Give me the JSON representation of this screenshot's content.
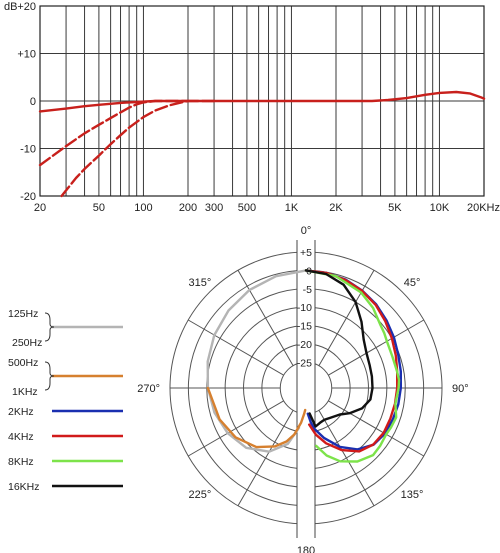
{
  "chart_data": [
    {
      "type": "line",
      "title": "",
      "x_scale": "log",
      "x_ticks": [
        {
          "value": 20,
          "label": "20"
        },
        {
          "value": 50,
          "label": "50"
        },
        {
          "value": 100,
          "label": "100"
        },
        {
          "value": 200,
          "label": "200"
        },
        {
          "value": 300,
          "label": "300"
        },
        {
          "value": 500,
          "label": "500"
        },
        {
          "value": 1000,
          "label": "1K"
        },
        {
          "value": 2000,
          "label": "2K"
        },
        {
          "value": 5000,
          "label": "5K"
        },
        {
          "value": 10000,
          "label": "10K"
        },
        {
          "value": 20000,
          "label": "20KHz"
        }
      ],
      "xlim": [
        20,
        20000
      ],
      "ylim": [
        -20,
        20
      ],
      "y_unit": "dB",
      "y_ticks": [
        {
          "value": 20,
          "label": "+20"
        },
        {
          "value": 10,
          "label": "+10"
        },
        {
          "value": 0,
          "label": "0"
        },
        {
          "value": -10,
          "label": "-10"
        },
        {
          "value": -20,
          "label": "-20"
        }
      ],
      "grid": true,
      "line_color": "#c8201c",
      "series": [
        {
          "style": "solid",
          "points": [
            [
              20,
              -2.2
            ],
            [
              30,
              -1.6
            ],
            [
              40,
              -1.1
            ],
            [
              50,
              -0.8
            ],
            [
              70,
              -0.4
            ],
            [
              90,
              -0.2
            ],
            [
              120,
              0
            ],
            [
              200,
              0
            ],
            [
              1000,
              0
            ],
            [
              3500,
              0
            ],
            [
              4500,
              0.2
            ],
            [
              6000,
              0.6
            ],
            [
              8000,
              1.3
            ],
            [
              10000,
              1.7
            ],
            [
              13000,
              1.9
            ],
            [
              16000,
              1.6
            ],
            [
              19000,
              0.8
            ],
            [
              20000,
              0.5
            ]
          ]
        },
        {
          "style": "dashed",
          "points": [
            [
              20,
              -13.5
            ],
            [
              30,
              -9.5
            ],
            [
              40,
              -6.8
            ],
            [
              50,
              -5
            ],
            [
              60,
              -3.6
            ],
            [
              70,
              -2.4
            ],
            [
              80,
              -1.4
            ],
            [
              90,
              -0.7
            ],
            [
              100,
              -0.3
            ],
            [
              120,
              0
            ],
            [
              200,
              0
            ]
          ]
        },
        {
          "style": "dashed",
          "points": [
            [
              28,
              -20
            ],
            [
              35,
              -16.2
            ],
            [
              40,
              -14.3
            ],
            [
              50,
              -11.5
            ],
            [
              60,
              -9.1
            ],
            [
              70,
              -7.2
            ],
            [
              80,
              -5.6
            ],
            [
              100,
              -3.4
            ],
            [
              120,
              -2
            ],
            [
              150,
              -0.9
            ],
            [
              180,
              -0.3
            ],
            [
              200,
              0
            ],
            [
              300,
              0
            ]
          ]
        }
      ]
    },
    {
      "type": "polar",
      "angle_labels": [
        {
          "angle": 0,
          "label": "0°"
        },
        {
          "angle": 45,
          "label": "45°"
        },
        {
          "angle": 90,
          "label": "90°"
        },
        {
          "angle": 135,
          "label": "135°"
        },
        {
          "angle": 180,
          "label": "180"
        },
        {
          "angle": 225,
          "label": "225°"
        },
        {
          "angle": 270,
          "label": "270°"
        },
        {
          "angle": 315,
          "label": "315°"
        }
      ],
      "radial_ticks": [
        {
          "value": 5,
          "label": "+5"
        },
        {
          "value": 0,
          "label": "0"
        },
        {
          "value": -5,
          "label": "-5"
        },
        {
          "value": -10,
          "label": "-10"
        },
        {
          "value": -15,
          "label": "-15"
        },
        {
          "value": -20,
          "label": "-20"
        },
        {
          "value": -25,
          "label": "-25"
        }
      ],
      "rlim": [
        -32,
        5
      ],
      "grid": true,
      "legend": [
        {
          "labels": [
            "125Hz",
            "250Hz"
          ],
          "color": "#b4b4b4"
        },
        {
          "labels": [
            "500Hz",
            "1KHz"
          ],
          "color": "#d6802f"
        },
        {
          "labels": [
            "2KHz"
          ],
          "color": "#1a2fb0"
        },
        {
          "labels": [
            "4KHz"
          ],
          "color": "#d11a1a"
        },
        {
          "labels": [
            "8KHz"
          ],
          "color": "#7de34a"
        },
        {
          "labels": [
            "16KHz"
          ],
          "color": "#111111"
        }
      ],
      "series": [
        {
          "legend_index": 0,
          "side": "left",
          "points": [
            [
              0,
              0
            ],
            [
              15,
              -0.5
            ],
            [
              30,
              -1.2
            ],
            [
              45,
              -2.2
            ],
            [
              60,
              -3.2
            ],
            [
              75,
              -4.3
            ],
            [
              90,
              -5.3
            ],
            [
              105,
              -6.2
            ],
            [
              120,
              -7.4
            ],
            [
              135,
              -9
            ],
            [
              150,
              -12
            ],
            [
              162,
              -16
            ],
            [
              170,
              -21
            ]
          ]
        },
        {
          "legend_index": 1,
          "side": "left",
          "points": [
            [
              90,
              -5.3
            ],
            [
              110,
              -7
            ],
            [
              125,
              -8.6
            ],
            [
              140,
              -11
            ],
            [
              152,
              -14
            ],
            [
              160,
              -16.5
            ],
            [
              166,
              -19
            ],
            [
              172,
              -22.5
            ],
            [
              176,
              -25
            ],
            [
              178,
              -26
            ]
          ]
        },
        {
          "legend_index": 2,
          "side": "right",
          "points": [
            [
              0,
              0
            ],
            [
              10,
              -0.2
            ],
            [
              20,
              -0.6
            ],
            [
              30,
              -1.4
            ],
            [
              40,
              -2.3
            ],
            [
              50,
              -3.4
            ],
            [
              60,
              -4.4
            ],
            [
              70,
              -5.3
            ],
            [
              80,
              -5.8
            ],
            [
              90,
              -6.2
            ],
            [
              100,
              -6.5
            ],
            [
              110,
              -6.9
            ],
            [
              120,
              -7.2
            ],
            [
              130,
              -8
            ],
            [
              140,
              -10.2
            ],
            [
              150,
              -13.5
            ],
            [
              160,
              -17.5
            ],
            [
              168,
              -20.5
            ],
            [
              172,
              -22.5
            ],
            [
              176,
              -25
            ]
          ]
        },
        {
          "legend_index": 3,
          "side": "right",
          "points": [
            [
              0,
              0
            ],
            [
              10,
              -0.2
            ],
            [
              20,
              -0.7
            ],
            [
              30,
              -1.5
            ],
            [
              40,
              -2.5
            ],
            [
              50,
              -3.8
            ],
            [
              60,
              -5
            ],
            [
              70,
              -6
            ],
            [
              80,
              -6.8
            ],
            [
              90,
              -7.2
            ],
            [
              100,
              -7.4
            ],
            [
              110,
              -7.6
            ],
            [
              120,
              -7.6
            ],
            [
              130,
              -8.1
            ],
            [
              140,
              -9.5
            ],
            [
              150,
              -12.5
            ],
            [
              160,
              -16
            ],
            [
              168,
              -19
            ],
            [
              175,
              -22
            ]
          ]
        },
        {
          "legend_index": 4,
          "side": "right",
          "points": [
            [
              0,
              0
            ],
            [
              15,
              -0.5
            ],
            [
              30,
              -2
            ],
            [
              40,
              -3.6
            ],
            [
              50,
              -5.5
            ],
            [
              55,
              -6
            ],
            [
              60,
              -6.6
            ],
            [
              70,
              -7
            ],
            [
              80,
              -6.8
            ],
            [
              85,
              -6.6
            ],
            [
              90,
              -6.8
            ],
            [
              100,
              -7.3
            ],
            [
              108,
              -6.2
            ],
            [
              115,
              -6.5
            ],
            [
              120,
              -6.8
            ],
            [
              128,
              -6.4
            ],
            [
              135,
              -6.2
            ],
            [
              145,
              -7.6
            ],
            [
              155,
              -10
            ],
            [
              163,
              -12.8
            ],
            [
              170,
              -16
            ]
          ]
        },
        {
          "legend_index": 5,
          "side": "right",
          "points": [
            [
              0,
              0
            ],
            [
              10,
              -0.5
            ],
            [
              20,
              -2.1
            ],
            [
              30,
              -5
            ],
            [
              40,
              -8.5
            ],
            [
              50,
              -11.5
            ],
            [
              60,
              -13
            ],
            [
              70,
              -13.6
            ],
            [
              80,
              -13.8
            ],
            [
              90,
              -13.9
            ],
            [
              100,
              -14.2
            ],
            [
              110,
              -15.8
            ],
            [
              120,
              -18.3
            ],
            [
              128,
              -20.3
            ],
            [
              140,
              -21.5
            ],
            [
              150,
              -22
            ],
            [
              158,
              -21.8
            ],
            [
              166,
              -21.2
            ],
            [
              172,
              -25
            ]
          ]
        }
      ]
    }
  ]
}
